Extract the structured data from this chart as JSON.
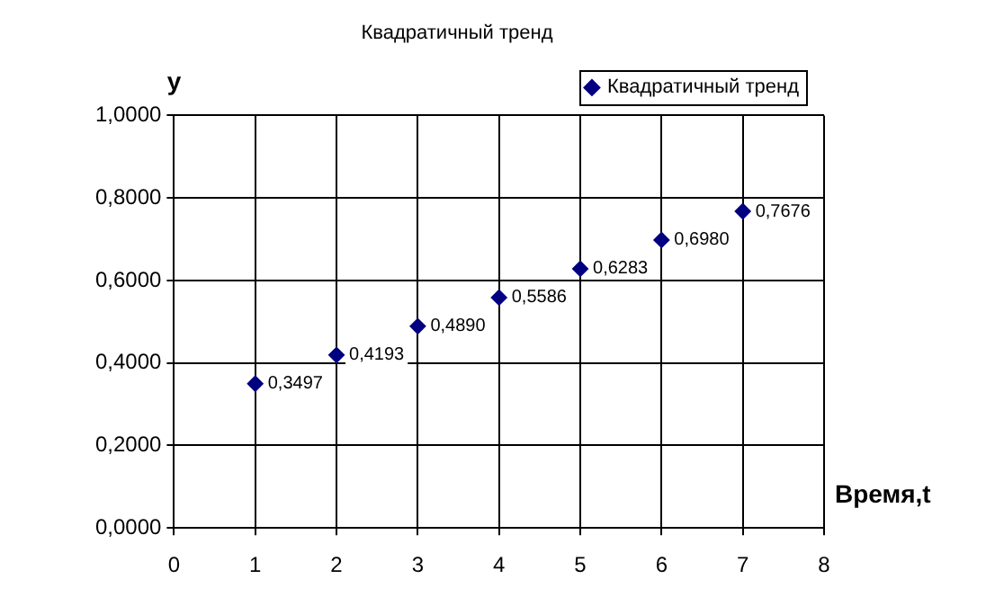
{
  "chart_data": {
    "type": "scatter",
    "title": "Квадратичный тренд",
    "xlabel": "Время,t",
    "ylabel": "y",
    "x": [
      1,
      2,
      3,
      4,
      5,
      6,
      7
    ],
    "series": [
      {
        "name": "Квадратичный тренд",
        "color": "#000080",
        "values": [
          0.3497,
          0.4193,
          0.489,
          0.5586,
          0.6283,
          0.698,
          0.7676
        ],
        "value_labels": [
          "0,3497",
          "0,4193",
          "0,4890",
          "0,5586",
          "0,6283",
          "0,6980",
          "0,7676"
        ]
      }
    ],
    "xlim": [
      0,
      8
    ],
    "xticks": [
      0,
      1,
      2,
      3,
      4,
      5,
      6,
      7,
      8
    ],
    "ylim": [
      0,
      1
    ],
    "yticks": [
      {
        "value": 0,
        "label": "0,0000"
      },
      {
        "value": 0.2,
        "label": "0,2000"
      },
      {
        "value": 0.4,
        "label": "0,4000"
      },
      {
        "value": 0.6,
        "label": "0,6000"
      },
      {
        "value": 0.8,
        "label": "0,8000"
      },
      {
        "value": 1,
        "label": "1,0000"
      }
    ],
    "grid": true,
    "legend": "top right",
    "marker": "diamond"
  }
}
